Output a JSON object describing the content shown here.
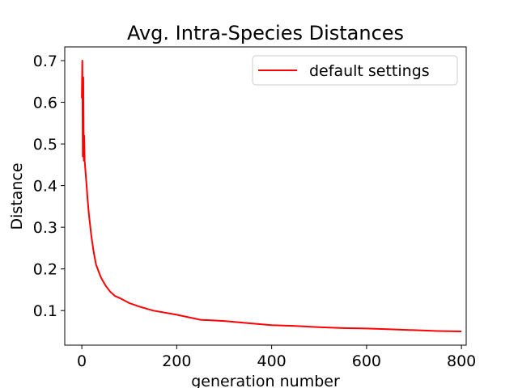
{
  "chart_data": {
    "type": "line",
    "title": "Avg. Intra-Species Distances",
    "xlabel": "generation number",
    "ylabel": "Distance",
    "xlim": [
      -36,
      810
    ],
    "ylim": [
      0.017,
      0.733
    ],
    "xticks": [
      0,
      200,
      400,
      600,
      800
    ],
    "yticks": [
      0.1,
      0.2,
      0.3,
      0.4,
      0.5,
      0.6,
      0.7
    ],
    "xtick_labels": [
      "0",
      "200",
      "400",
      "600",
      "800"
    ],
    "ytick_labels": [
      "0.1",
      "0.2",
      "0.3",
      "0.4",
      "0.5",
      "0.6",
      "0.7"
    ],
    "grid": false,
    "legend_position": "top-right",
    "series": [
      {
        "name": "default settings",
        "color": "#ff0000",
        "x": [
          0,
          1,
          2,
          3,
          4,
          5,
          6,
          8,
          10,
          12,
          15,
          20,
          25,
          30,
          40,
          50,
          60,
          70,
          80,
          100,
          120,
          150,
          200,
          250,
          300,
          350,
          400,
          450,
          500,
          550,
          600,
          650,
          700,
          750,
          800
        ],
        "y": [
          0.61,
          0.7,
          0.47,
          0.66,
          0.46,
          0.52,
          0.46,
          0.43,
          0.4,
          0.37,
          0.33,
          0.28,
          0.24,
          0.21,
          0.18,
          0.16,
          0.145,
          0.135,
          0.13,
          0.118,
          0.11,
          0.1,
          0.09,
          0.078,
          0.075,
          0.07,
          0.065,
          0.063,
          0.06,
          0.058,
          0.057,
          0.055,
          0.053,
          0.051,
          0.05
        ]
      }
    ]
  }
}
